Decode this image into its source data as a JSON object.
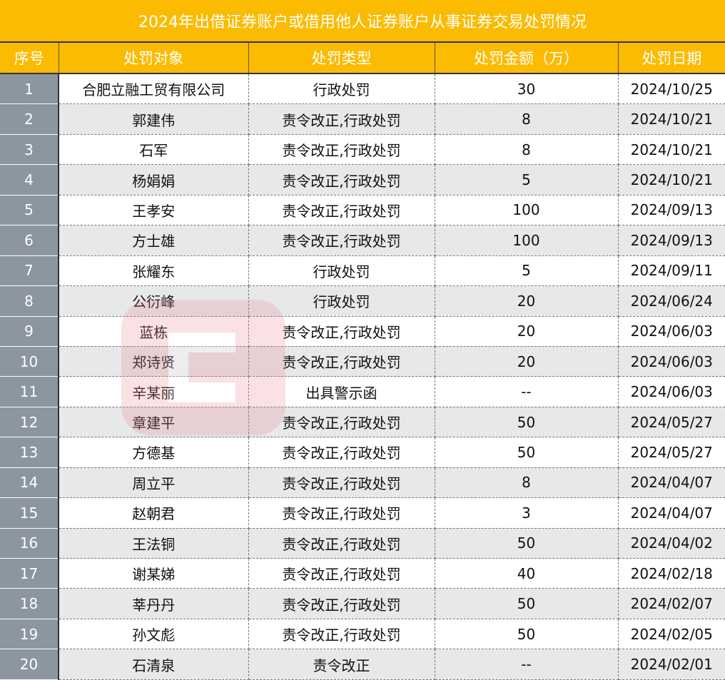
{
  "title": "2024年出借证券账户或借用他人证券账户从事证券交易处罚情况",
  "headers": [
    "序号",
    "处罚对象",
    "处罚类型",
    "处罚金额（万）",
    "处罚日期"
  ],
  "watermark": "财联社",
  "colors": {
    "header": "#fbbb00",
    "index_column": "#8c96a0",
    "alt_row": "#e7e8ea"
  },
  "rows": [
    [
      "1",
      "合肥立融工贸有限公司",
      "行政处罚",
      "30",
      "2024/10/25"
    ],
    [
      "2",
      "郭建伟",
      "责令改正,行政处罚",
      "8",
      "2024/10/21"
    ],
    [
      "3",
      "石军",
      "责令改正,行政处罚",
      "8",
      "2024/10/21"
    ],
    [
      "4",
      "杨娟娟",
      "责令改正,行政处罚",
      "5",
      "2024/10/21"
    ],
    [
      "5",
      "王孝安",
      "责令改正,行政处罚",
      "100",
      "2024/09/13"
    ],
    [
      "6",
      "方士雄",
      "责令改正,行政处罚",
      "100",
      "2024/09/13"
    ],
    [
      "7",
      "张耀东",
      "行政处罚",
      "5",
      "2024/09/11"
    ],
    [
      "8",
      "公衍峰",
      "行政处罚",
      "20",
      "2024/06/24"
    ],
    [
      "9",
      "蓝栋",
      "责令改正,行政处罚",
      "20",
      "2024/06/03"
    ],
    [
      "10",
      "郑诗贤",
      "责令改正,行政处罚",
      "20",
      "2024/06/03"
    ],
    [
      "11",
      "辛某丽",
      "出具警示函",
      "--",
      "2024/06/03"
    ],
    [
      "12",
      "章建平",
      "责令改正,行政处罚",
      "50",
      "2024/05/27"
    ],
    [
      "13",
      "方德基",
      "责令改正,行政处罚",
      "50",
      "2024/05/27"
    ],
    [
      "14",
      "周立平",
      "责令改正,行政处罚",
      "8",
      "2024/04/07"
    ],
    [
      "15",
      "赵朝君",
      "责令改正,行政处罚",
      "3",
      "2024/04/07"
    ],
    [
      "16",
      "王法铜",
      "责令改正,行政处罚",
      "50",
      "2024/04/02"
    ],
    [
      "17",
      "谢某娣",
      "责令改正,行政处罚",
      "40",
      "2024/02/18"
    ],
    [
      "18",
      "莘丹丹",
      "责令改正,行政处罚",
      "50",
      "2024/02/07"
    ],
    [
      "19",
      "孙文彪",
      "责令改正,行政处罚",
      "50",
      "2024/02/05"
    ],
    [
      "20",
      "石清泉",
      "责令改正",
      "--",
      "2024/02/01"
    ]
  ]
}
